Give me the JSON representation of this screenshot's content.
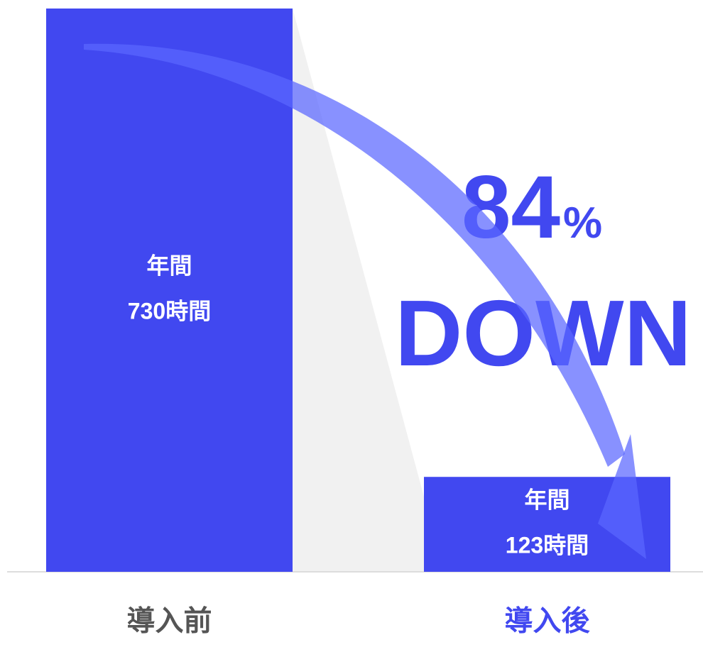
{
  "chart_data": {
    "type": "bar",
    "categories": [
      "導入前",
      "導入後"
    ],
    "values": [
      730,
      123
    ],
    "value_labels": [
      [
        "年間",
        "730時間"
      ],
      [
        "年間",
        "123時間"
      ]
    ],
    "color": "#4148f0",
    "category_colors": [
      "#555555",
      "#4148f0"
    ],
    "annotation": {
      "number": "84",
      "unit": "%",
      "text": "DOWN"
    }
  }
}
